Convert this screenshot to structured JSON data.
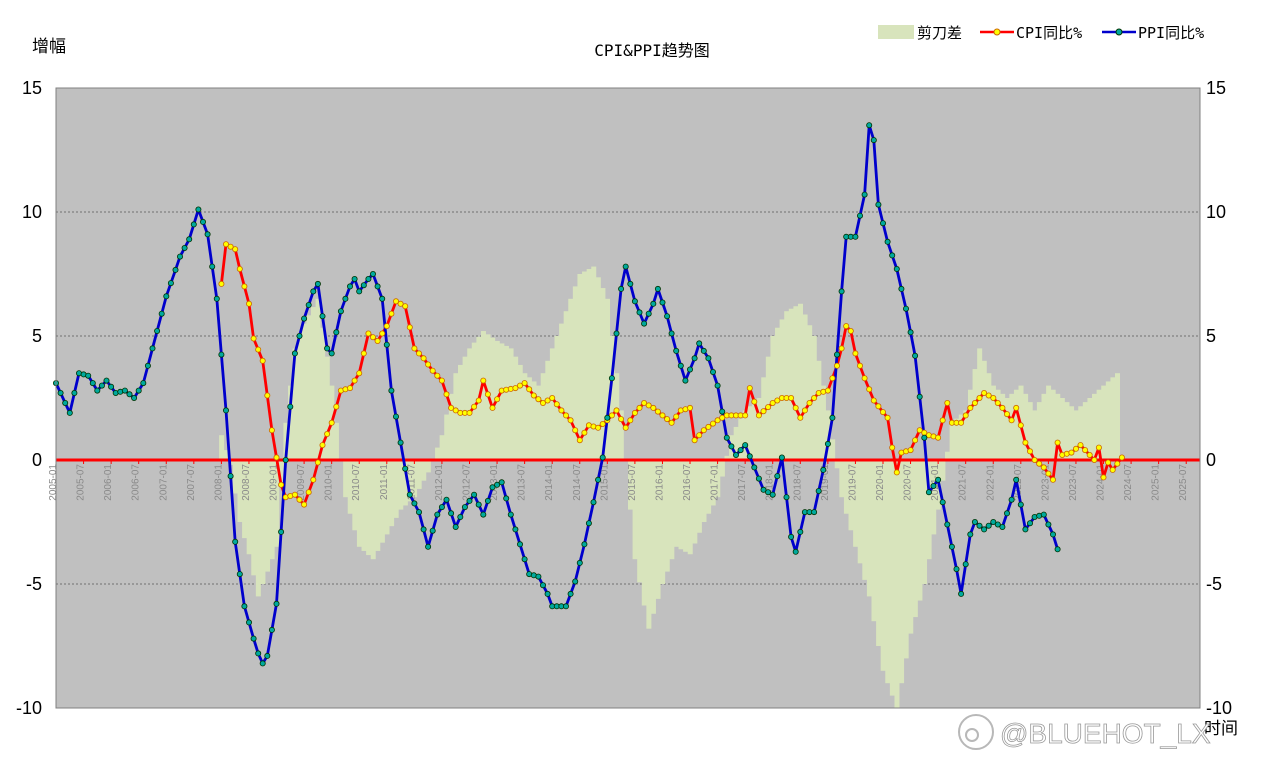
{
  "chart_data": {
    "type": "line",
    "title": "CPI&PPI趋势图",
    "ylabel": "增幅",
    "xlabel": "时间",
    "ylim": [
      -10,
      15
    ],
    "y2lim": [
      -10,
      15
    ],
    "yticks": [
      -10,
      -5,
      0,
      5,
      10,
      15
    ],
    "grid": true,
    "legend_position": "top-right",
    "x_start": "2005-01",
    "x_end": "2025-10",
    "x_tick_labels": [
      "2005-01",
      "2005-07",
      "2006-01",
      "2006-07",
      "2007-01",
      "2007-07",
      "2008-01",
      "2008-07",
      "2009-01",
      "2009-07",
      "2010-01",
      "2010-07",
      "2011-01",
      "2011-07",
      "2012-01",
      "2012-07",
      "2013-01",
      "2013-07",
      "2014-01",
      "2014-07",
      "2015-01",
      "2015-07",
      "2016-01",
      "2016-07",
      "2017-01",
      "2017-07",
      "2018-01",
      "2018-07",
      "2019-01",
      "2019-07",
      "2020-01",
      "2020-07",
      "2021-01",
      "2021-07",
      "2022-01",
      "2022-07",
      "2023-01",
      "2023-07",
      "2024-01",
      "2024-07",
      "2025-01",
      "2025-07"
    ],
    "series": [
      {
        "name": "剪刀差",
        "kind": "area",
        "color": "#d8e4bc",
        "start": "2008-01",
        "knots": [
          [
            0,
            1.0
          ],
          [
            2,
            -0.2
          ],
          [
            4,
            -2.5
          ],
          [
            6,
            -3.8
          ],
          [
            8,
            -5.5
          ],
          [
            10,
            -4.5
          ],
          [
            12,
            -3.5
          ],
          [
            14,
            1.5
          ],
          [
            16,
            4.5
          ],
          [
            18,
            5.5
          ],
          [
            21,
            6.5
          ],
          [
            24,
            3.0
          ],
          [
            27,
            -1.5
          ],
          [
            30,
            -3.5
          ],
          [
            33,
            -4.0
          ],
          [
            36,
            -3.0
          ],
          [
            39,
            -2.0
          ],
          [
            42,
            -1.5
          ],
          [
            45,
            -0.5
          ],
          [
            48,
            1.0
          ],
          [
            51,
            3.5
          ],
          [
            54,
            4.5
          ],
          [
            57,
            5.2
          ],
          [
            60,
            4.8
          ],
          [
            63,
            4.5
          ],
          [
            66,
            3.5
          ],
          [
            69,
            3.0
          ],
          [
            72,
            4.5
          ],
          [
            75,
            6.0
          ],
          [
            78,
            7.5
          ],
          [
            81,
            7.8
          ],
          [
            84,
            6.5
          ],
          [
            87,
            2.0
          ],
          [
            90,
            -4.0
          ],
          [
            93,
            -6.8
          ],
          [
            96,
            -5.0
          ],
          [
            99,
            -3.5
          ],
          [
            102,
            -3.8
          ],
          [
            105,
            -2.5
          ],
          [
            108,
            -1.5
          ],
          [
            111,
            1.0
          ],
          [
            114,
            2.0
          ],
          [
            117,
            2.5
          ],
          [
            120,
            5.0
          ],
          [
            123,
            6.0
          ],
          [
            126,
            6.3
          ],
          [
            129,
            5.0
          ],
          [
            132,
            2.0
          ],
          [
            135,
            -1.5
          ],
          [
            138,
            -3.5
          ],
          [
            141,
            -5.5
          ],
          [
            144,
            -8.5
          ],
          [
            147,
            -10.0
          ],
          [
            150,
            -7.0
          ],
          [
            153,
            -5.0
          ],
          [
            156,
            -2.0
          ],
          [
            159,
            1.5
          ],
          [
            162,
            2.0
          ],
          [
            165,
            4.5
          ],
          [
            168,
            3.0
          ],
          [
            171,
            2.5
          ],
          [
            174,
            3.0
          ],
          [
            177,
            2.0
          ],
          [
            180,
            3.0
          ],
          [
            183,
            2.5
          ],
          [
            186,
            2.0
          ],
          [
            189,
            2.5
          ],
          [
            192,
            3.0
          ],
          [
            195,
            3.5
          ]
        ]
      },
      {
        "name": "CPI同比%",
        "kind": "line",
        "color": "#ff0000",
        "start": "2008-01",
        "knots": [
          [
            0,
            7.1
          ],
          [
            1,
            8.7
          ],
          [
            3,
            8.5
          ],
          [
            4,
            7.7
          ],
          [
            6,
            6.3
          ],
          [
            7,
            4.9
          ],
          [
            9,
            4.0
          ],
          [
            11,
            1.2
          ],
          [
            13,
            -1.0
          ],
          [
            14,
            -1.5
          ],
          [
            16,
            -1.4
          ],
          [
            18,
            -1.8
          ],
          [
            20,
            -0.8
          ],
          [
            22,
            0.6
          ],
          [
            24,
            1.5
          ],
          [
            26,
            2.8
          ],
          [
            28,
            2.9
          ],
          [
            30,
            3.5
          ],
          [
            32,
            5.1
          ],
          [
            34,
            4.8
          ],
          [
            36,
            5.4
          ],
          [
            38,
            6.4
          ],
          [
            40,
            6.2
          ],
          [
            42,
            4.5
          ],
          [
            44,
            4.1
          ],
          [
            46,
            3.6
          ],
          [
            48,
            3.2
          ],
          [
            50,
            2.1
          ],
          [
            52,
            1.9
          ],
          [
            54,
            1.9
          ],
          [
            56,
            2.4
          ],
          [
            57,
            3.2
          ],
          [
            59,
            2.1
          ],
          [
            61,
            2.8
          ],
          [
            64,
            2.9
          ],
          [
            66,
            3.1
          ],
          [
            68,
            2.6
          ],
          [
            70,
            2.3
          ],
          [
            72,
            2.5
          ],
          [
            74,
            2.0
          ],
          [
            76,
            1.6
          ],
          [
            78,
            0.8
          ],
          [
            80,
            1.4
          ],
          [
            82,
            1.3
          ],
          [
            84,
            1.6
          ],
          [
            86,
            2.0
          ],
          [
            88,
            1.3
          ],
          [
            90,
            1.9
          ],
          [
            92,
            2.3
          ],
          [
            94,
            2.1
          ],
          [
            96,
            1.8
          ],
          [
            98,
            1.5
          ],
          [
            100,
            2.0
          ],
          [
            102,
            2.1
          ],
          [
            103,
            0.8
          ],
          [
            105,
            1.2
          ],
          [
            108,
            1.6
          ],
          [
            110,
            1.8
          ],
          [
            114,
            1.8
          ],
          [
            115,
            2.9
          ],
          [
            117,
            1.8
          ],
          [
            120,
            2.3
          ],
          [
            122,
            2.5
          ],
          [
            124,
            2.5
          ],
          [
            126,
            1.7
          ],
          [
            128,
            2.3
          ],
          [
            130,
            2.7
          ],
          [
            132,
            2.8
          ],
          [
            134,
            3.8
          ],
          [
            135,
            4.5
          ],
          [
            136,
            5.4
          ],
          [
            137,
            5.2
          ],
          [
            138,
            4.3
          ],
          [
            140,
            3.3
          ],
          [
            142,
            2.4
          ],
          [
            145,
            1.7
          ],
          [
            146,
            0.5
          ],
          [
            147,
            -0.5
          ],
          [
            148,
            0.3
          ],
          [
            150,
            0.4
          ],
          [
            152,
            1.2
          ],
          [
            154,
            1.0
          ],
          [
            156,
            0.9
          ],
          [
            158,
            2.3
          ],
          [
            159,
            1.5
          ],
          [
            161,
            1.5
          ],
          [
            163,
            2.1
          ],
          [
            166,
            2.7
          ],
          [
            168,
            2.5
          ],
          [
            170,
            2.1
          ],
          [
            172,
            1.6
          ],
          [
            173,
            2.1
          ],
          [
            175,
            0.7
          ],
          [
            177,
            0.0
          ],
          [
            179,
            -0.3
          ],
          [
            181,
            -0.8
          ],
          [
            182,
            0.7
          ],
          [
            183,
            0.2
          ],
          [
            185,
            0.3
          ],
          [
            187,
            0.6
          ],
          [
            189,
            0.2
          ],
          [
            190,
            0.0
          ],
          [
            191,
            0.5
          ],
          [
            192,
            -0.7
          ],
          [
            193,
            -0.1
          ],
          [
            194,
            -0.4
          ],
          [
            196,
            0.1
          ]
        ]
      },
      {
        "name": "PPI同比%",
        "kind": "line",
        "color": "#0000cc",
        "start": "2005-01",
        "knots": [
          [
            0,
            3.1
          ],
          [
            2,
            2.3
          ],
          [
            3,
            1.9
          ],
          [
            5,
            3.5
          ],
          [
            7,
            3.4
          ],
          [
            9,
            2.8
          ],
          [
            11,
            3.2
          ],
          [
            13,
            2.7
          ],
          [
            15,
            2.8
          ],
          [
            17,
            2.5
          ],
          [
            19,
            3.1
          ],
          [
            21,
            4.5
          ],
          [
            24,
            6.6
          ],
          [
            27,
            8.2
          ],
          [
            29,
            8.9
          ],
          [
            31,
            10.1
          ],
          [
            33,
            9.1
          ],
          [
            35,
            6.5
          ],
          [
            37,
            2.0
          ],
          [
            39,
            -3.3
          ],
          [
            41,
            -5.9
          ],
          [
            43,
            -7.2
          ],
          [
            44,
            -7.8
          ],
          [
            45,
            -8.2
          ],
          [
            46,
            -7.9
          ],
          [
            48,
            -5.8
          ],
          [
            50,
            0.0
          ],
          [
            52,
            4.3
          ],
          [
            54,
            5.7
          ],
          [
            56,
            6.8
          ],
          [
            57,
            7.1
          ],
          [
            59,
            4.5
          ],
          [
            60,
            4.3
          ],
          [
            62,
            6.0
          ],
          [
            64,
            7.0
          ],
          [
            65,
            7.3
          ],
          [
            66,
            6.8
          ],
          [
            68,
            7.3
          ],
          [
            69,
            7.5
          ],
          [
            71,
            6.5
          ],
          [
            73,
            2.8
          ],
          [
            75,
            0.7
          ],
          [
            77,
            -1.4
          ],
          [
            79,
            -2.1
          ],
          [
            81,
            -3.5
          ],
          [
            83,
            -2.2
          ],
          [
            85,
            -1.6
          ],
          [
            87,
            -2.7
          ],
          [
            89,
            -1.9
          ],
          [
            91,
            -1.4
          ],
          [
            93,
            -2.2
          ],
          [
            95,
            -1.1
          ],
          [
            97,
            -0.9
          ],
          [
            99,
            -2.2
          ],
          [
            101,
            -3.4
          ],
          [
            103,
            -4.6
          ],
          [
            105,
            -4.7
          ],
          [
            107,
            -5.4
          ],
          [
            108,
            -5.9
          ],
          [
            111,
            -5.9
          ],
          [
            113,
            -4.9
          ],
          [
            115,
            -3.4
          ],
          [
            117,
            -1.7
          ],
          [
            119,
            0.1
          ],
          [
            121,
            3.3
          ],
          [
            123,
            6.9
          ],
          [
            124,
            7.8
          ],
          [
            126,
            6.4
          ],
          [
            128,
            5.5
          ],
          [
            130,
            6.3
          ],
          [
            131,
            6.9
          ],
          [
            133,
            5.8
          ],
          [
            135,
            4.4
          ],
          [
            137,
            3.2
          ],
          [
            139,
            4.1
          ],
          [
            140,
            4.7
          ],
          [
            142,
            4.1
          ],
          [
            144,
            3.0
          ],
          [
            146,
            0.9
          ],
          [
            148,
            0.2
          ],
          [
            150,
            0.6
          ],
          [
            152,
            -0.3
          ],
          [
            154,
            -1.2
          ],
          [
            156,
            -1.4
          ],
          [
            158,
            0.1
          ],
          [
            160,
            -3.1
          ],
          [
            161,
            -3.7
          ],
          [
            163,
            -2.1
          ],
          [
            165,
            -2.1
          ],
          [
            167,
            -0.4
          ],
          [
            169,
            1.7
          ],
          [
            171,
            6.8
          ],
          [
            172,
            9.0
          ],
          [
            174,
            9.0
          ],
          [
            176,
            10.7
          ],
          [
            177,
            13.5
          ],
          [
            178,
            12.9
          ],
          [
            179,
            10.3
          ],
          [
            181,
            8.8
          ],
          [
            183,
            7.7
          ],
          [
            185,
            6.1
          ],
          [
            187,
            4.2
          ],
          [
            189,
            0.9
          ],
          [
            190,
            -1.3
          ],
          [
            192,
            -0.8
          ],
          [
            194,
            -2.6
          ],
          [
            196,
            -4.4
          ],
          [
            197,
            -5.4
          ],
          [
            199,
            -3.0
          ],
          [
            200,
            -2.5
          ],
          [
            202,
            -2.8
          ],
          [
            204,
            -2.5
          ],
          [
            206,
            -2.7
          ],
          [
            208,
            -1.6
          ],
          [
            209,
            -0.8
          ],
          [
            211,
            -2.8
          ],
          [
            213,
            -2.3
          ],
          [
            215,
            -2.2
          ],
          [
            217,
            -3.0
          ],
          [
            218,
            -3.6
          ]
        ]
      }
    ]
  },
  "watermark": "@BLUEHOT_LX"
}
